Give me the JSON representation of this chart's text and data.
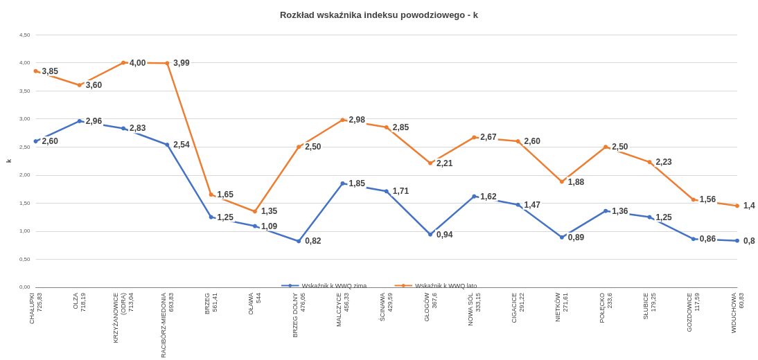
{
  "chart_data": {
    "type": "line",
    "title": "Rozkład wskaźnika indeksu powodziowego - k",
    "ylabel": "k",
    "categories": [
      "CHAŁUPKI\n725,83",
      "OLZA\n718,19",
      "KRZYŻANOWICE\n(ODRA)\n713,04",
      "RACIBÓRZ-MIEDONIA\n693,83",
      "BRZEG\n561,41",
      "OŁAWA\n544",
      "BRZEG DOLNY\n476,05",
      "MALCZYCE\n456,33",
      "ŚCINAWA\n429,59",
      "GŁOGÓW\n367,6",
      "NOWA SÓL\n333,15",
      "CIGACICE\n291,22",
      "NIETKÓW\n271,61",
      "POŁĘCKO\n233,6",
      "SŁUBICE\n179,25",
      "GOZDOWICE\n117,59",
      "WIDUCHOWA\n60,83"
    ],
    "series": [
      {
        "name": "Wskaźnik k WWQ zima",
        "color": "#4472c4",
        "values": [
          2.6,
          2.96,
          2.83,
          2.54,
          1.25,
          1.09,
          0.82,
          1.85,
          1.71,
          0.94,
          1.62,
          1.47,
          0.89,
          1.36,
          1.25,
          0.86,
          0.83
        ],
        "value_labels": [
          "2,60",
          "2,96",
          "2,83",
          "2,54",
          "1,25",
          "1,09",
          "0,82",
          "1,85",
          "1,71",
          "0,94",
          "1,62",
          "1,47",
          "0,89",
          "1,36",
          "1,25",
          "0,86",
          "0,8"
        ]
      },
      {
        "name": "Wskaźnik k WWQ lato",
        "color": "#ed7d31",
        "values": [
          3.85,
          3.6,
          4.0,
          3.99,
          1.65,
          1.35,
          2.5,
          2.98,
          2.85,
          2.21,
          2.67,
          2.6,
          1.88,
          2.5,
          2.23,
          1.56,
          1.45
        ],
        "value_labels": [
          "3,85",
          "3,60",
          "4,00",
          "3,99",
          "1,65",
          "1,35",
          "2,50",
          "2,98",
          "2,85",
          "2,21",
          "2,67",
          "2,60",
          "1,88",
          "2,50",
          "2,23",
          "1,56",
          "1,4"
        ]
      }
    ],
    "ylim": [
      0,
      4.5
    ],
    "yticks": [
      {
        "value": 0,
        "label": "0,00"
      },
      {
        "value": 0.5,
        "label": "0,50"
      },
      {
        "value": 1,
        "label": "1,00"
      },
      {
        "value": 1.5,
        "label": "1,50"
      },
      {
        "value": 2,
        "label": "2,00"
      },
      {
        "value": 2.5,
        "label": "2,50"
      },
      {
        "value": 3,
        "label": "3,00"
      },
      {
        "value": 3.5,
        "label": "3,50"
      },
      {
        "value": 4,
        "label": "4,00"
      },
      {
        "value": 4.5,
        "label": "4,50"
      }
    ],
    "grid": "y",
    "legend": "bottom",
    "marker": "circle",
    "line_style": "solid"
  }
}
